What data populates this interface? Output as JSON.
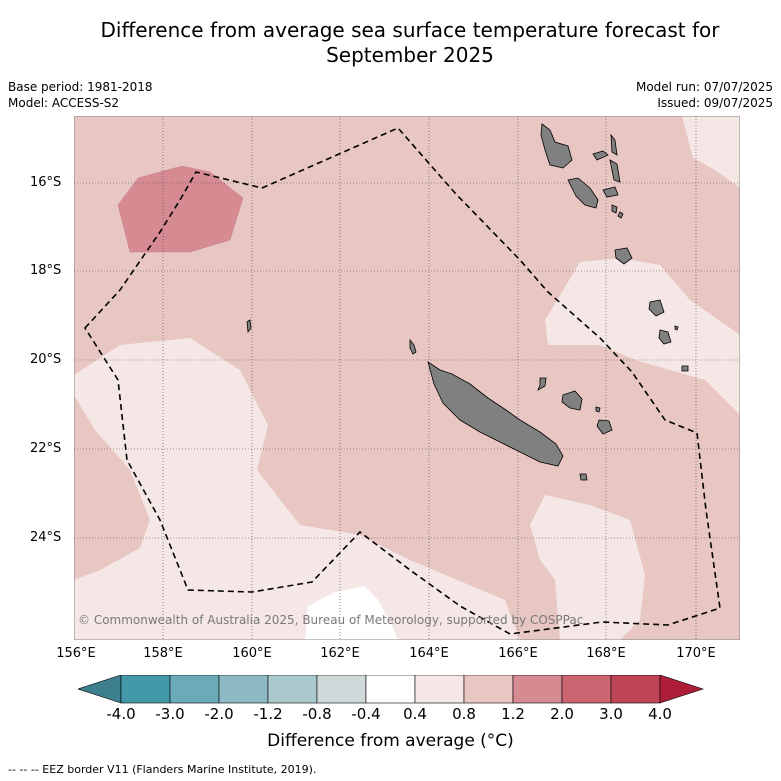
{
  "title": {
    "line1": "Difference from average sea surface temperature forecast for",
    "line2": "September 2025"
  },
  "meta": {
    "base_period": "Base period: 1981-2018",
    "model": "Model: ACCESS-S2",
    "model_run": "Model run: 07/07/2025",
    "issued": "Issued: 09/07/2025"
  },
  "map": {
    "lat_labels": [
      "16°S",
      "18°S",
      "20°S",
      "22°S",
      "24°S"
    ],
    "lon_labels": [
      "156°E",
      "158°E",
      "160°E",
      "162°E",
      "164°E",
      "166°E",
      "168°E",
      "170°E"
    ],
    "copyright": "© Commonwealth of Australia 2025, Bureau of Meteorology, supported by COSPPac",
    "land_color": "#808080",
    "eez_style": "black dashed line"
  },
  "colorbar": {
    "ticks": [
      "-4.0",
      "-3.0",
      "-2.0",
      "-1.2",
      "-0.8",
      "-0.4",
      "0.4",
      "0.8",
      "1.2",
      "2.0",
      "3.0",
      "4.0"
    ],
    "colors": [
      "#4499a8",
      "#6aaab9",
      "#8db9c4",
      "#a9c9cc",
      "#cfd9da",
      "#ffffff",
      "#f4e7e5",
      "#e8c6c1",
      "#d68b92",
      "#cb6572",
      "#bd4555"
    ],
    "extend_low_color": "#3d7f8c",
    "extend_high_color": "#ad1d38",
    "label": "Difference from average (°C)"
  },
  "footer": {
    "eez_note": "-- -- -- EEZ border V11 (Flanders Marine Institute, 2019)."
  }
}
